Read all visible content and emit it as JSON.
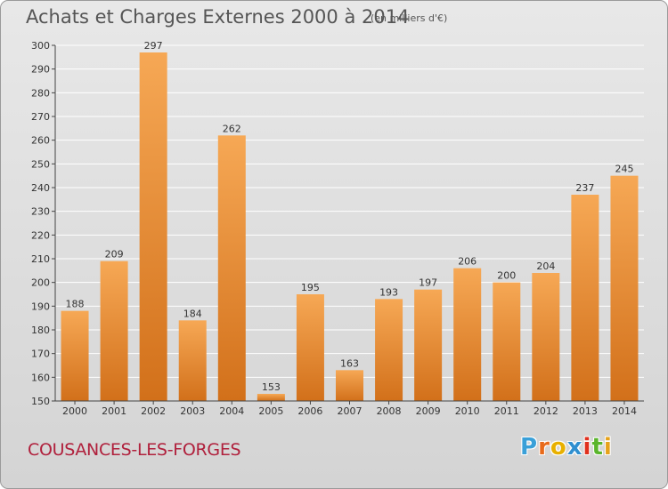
{
  "header": {
    "title": "Achats et Charges Externes 2000 à 2014",
    "subtitle": "(en milliers d'€)"
  },
  "footer": {
    "commune": "COUSANCES-LES-FORGES",
    "logo_letters": [
      "P",
      "r",
      "o",
      "x",
      "i",
      "t",
      "i"
    ],
    "logo_colors": [
      "#3aa0d8",
      "#e86a1a",
      "#e8b000",
      "#2f8fd0",
      "#e0301e",
      "#5ab52c",
      "#e6a21a"
    ]
  },
  "colors": {
    "bar_light": "#f6a855",
    "bar_dark": "#d2701a",
    "grid": "#ffffff",
    "axis": "#444444",
    "text": "#333333"
  },
  "chart_data": {
    "type": "bar",
    "title": "Achats et Charges Externes 2000 à 2014",
    "subtitle": "(en milliers d'€)",
    "categories": [
      "2000",
      "2001",
      "2002",
      "2003",
      "2004",
      "2005",
      "2006",
      "2007",
      "2008",
      "2009",
      "2010",
      "2011",
      "2012",
      "2013",
      "2014"
    ],
    "values": [
      188,
      209,
      297,
      184,
      262,
      153,
      195,
      163,
      193,
      197,
      206,
      200,
      204,
      237,
      245
    ],
    "ylim": [
      150,
      300
    ],
    "yticks": [
      150,
      160,
      170,
      180,
      190,
      200,
      210,
      220,
      230,
      240,
      250,
      260,
      270,
      280,
      290,
      300
    ],
    "grid": true,
    "data_labels": true
  }
}
